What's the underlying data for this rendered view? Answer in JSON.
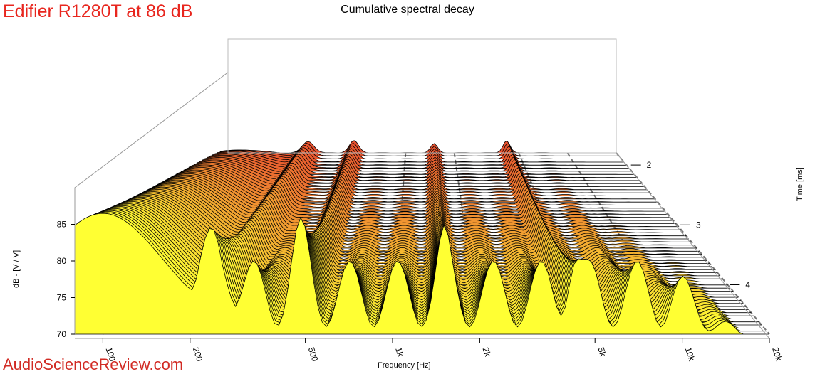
{
  "header": {
    "brand_title": "Edifier R1280T at 86 dB",
    "watermark": "AudioScienceReview.com"
  },
  "chart_data": {
    "type": "waterfall",
    "title": "Cumulative spectral decay",
    "xlabel": "Frequency [Hz]",
    "ylabel": "dB - [V / V]",
    "zlabel": "Time [ms]",
    "x_scale": "log",
    "x_range_hz": [
      80,
      20000
    ],
    "x_ticks": [
      {
        "value": 100,
        "label": "100"
      },
      {
        "value": 200,
        "label": "200"
      },
      {
        "value": 500,
        "label": "500"
      },
      {
        "value": 1000,
        "label": "1k"
      },
      {
        "value": 2000,
        "label": "2k"
      },
      {
        "value": 5000,
        "label": "5k"
      },
      {
        "value": 10000,
        "label": "10k"
      },
      {
        "value": 20000,
        "label": "20k"
      }
    ],
    "y_range": [
      70,
      90
    ],
    "y_ticks": [
      {
        "value": 70,
        "label": "70"
      },
      {
        "value": 75,
        "label": "75"
      },
      {
        "value": 80,
        "label": "80"
      },
      {
        "value": 85,
        "label": "85"
      }
    ],
    "time_ticks": [
      {
        "value": 2,
        "label": "2"
      },
      {
        "value": 3,
        "label": "3"
      },
      {
        "value": 4,
        "label": "4"
      }
    ],
    "slice_count": 60,
    "color_front": "#ffff33",
    "color_back": "#e8512f",
    "grid": true
  }
}
